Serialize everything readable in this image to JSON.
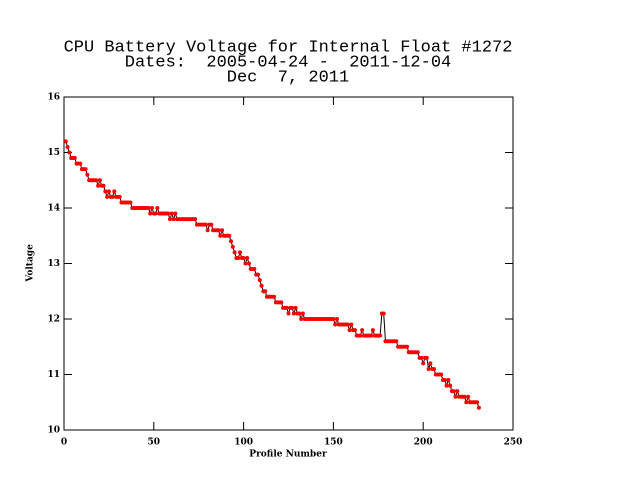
{
  "chart_data": {
    "type": "line",
    "title": [
      "CPU Battery Voltage for Internal Float #1272",
      "Dates:  2005-04-24 -  2011-12-04",
      "Dec  7, 2011"
    ],
    "x_label": "Profile Number",
    "y_label": "Voltage",
    "xlim": [
      0,
      250
    ],
    "xticks": [
      0,
      50,
      100,
      150,
      200,
      250
    ],
    "ylim": [
      10,
      16
    ],
    "yticks": [
      10,
      11,
      12,
      13,
      14,
      15,
      16
    ],
    "line_color": "#000000",
    "marker_color": "#ff0000",
    "x": [
      1,
      2,
      3,
      4,
      5,
      6,
      7,
      8,
      9,
      10,
      11,
      12,
      13,
      14,
      15,
      16,
      17,
      18,
      19,
      20,
      21,
      22,
      23,
      24,
      25,
      26,
      27,
      28,
      29,
      30,
      31,
      32,
      33,
      34,
      35,
      36,
      37,
      38,
      39,
      40,
      41,
      42,
      43,
      44,
      45,
      46,
      47,
      48,
      49,
      50,
      51,
      52,
      53,
      54,
      55,
      56,
      57,
      58,
      59,
      60,
      61,
      62,
      63,
      64,
      65,
      66,
      67,
      68,
      69,
      70,
      71,
      72,
      73,
      74,
      75,
      76,
      77,
      78,
      79,
      80,
      81,
      82,
      83,
      84,
      85,
      86,
      87,
      88,
      89,
      90,
      91,
      92,
      93,
      94,
      95,
      96,
      97,
      98,
      99,
      100,
      101,
      102,
      103,
      104,
      105,
      106,
      107,
      108,
      109,
      110,
      111,
      112,
      113,
      114,
      115,
      116,
      117,
      118,
      119,
      120,
      121,
      122,
      123,
      124,
      125,
      126,
      127,
      128,
      129,
      130,
      131,
      132,
      133,
      134,
      135,
      136,
      137,
      138,
      139,
      140,
      141,
      142,
      143,
      144,
      145,
      146,
      147,
      148,
      149,
      150,
      151,
      152,
      153,
      154,
      155,
      156,
      157,
      158,
      159,
      160,
      161,
      162,
      163,
      164,
      165,
      166,
      167,
      168,
      169,
      170,
      171,
      172,
      173,
      174,
      175,
      176,
      177,
      178,
      179,
      180,
      181,
      182,
      183,
      184,
      185,
      186,
      187,
      188,
      189,
      190,
      191,
      192,
      193,
      194,
      195,
      196,
      197,
      198,
      199,
      200,
      201,
      202,
      203,
      204,
      205,
      206,
      207,
      208,
      209,
      210,
      211,
      212,
      213,
      214,
      215,
      216,
      217,
      218,
      219,
      220,
      221,
      222,
      223,
      224,
      225,
      226,
      227,
      228,
      229,
      230,
      231
    ],
    "values": [
      15.2,
      15.1,
      15.0,
      14.9,
      14.9,
      14.9,
      14.8,
      14.8,
      14.8,
      14.7,
      14.7,
      14.7,
      14.6,
      14.5,
      14.5,
      14.5,
      14.5,
      14.5,
      14.4,
      14.5,
      14.4,
      14.4,
      14.3,
      14.2,
      14.3,
      14.2,
      14.2,
      14.3,
      14.2,
      14.2,
      14.2,
      14.1,
      14.1,
      14.1,
      14.1,
      14.1,
      14.1,
      14.0,
      14.0,
      14.0,
      14.0,
      14.0,
      14.0,
      14.0,
      14.0,
      14.0,
      14.0,
      13.9,
      14.0,
      13.9,
      13.9,
      14.0,
      13.9,
      13.9,
      13.9,
      13.9,
      13.9,
      13.9,
      13.8,
      13.9,
      13.8,
      13.9,
      13.8,
      13.8,
      13.8,
      13.8,
      13.8,
      13.8,
      13.8,
      13.8,
      13.8,
      13.8,
      13.8,
      13.7,
      13.7,
      13.7,
      13.7,
      13.7,
      13.7,
      13.6,
      13.7,
      13.7,
      13.6,
      13.6,
      13.6,
      13.6,
      13.5,
      13.6,
      13.5,
      13.5,
      13.5,
      13.5,
      13.4,
      13.3,
      13.2,
      13.1,
      13.1,
      13.2,
      13.1,
      13.1,
      13.0,
      13.1,
      13.0,
      12.9,
      12.9,
      12.9,
      12.8,
      12.8,
      12.7,
      12.6,
      12.5,
      12.5,
      12.4,
      12.4,
      12.4,
      12.4,
      12.4,
      12.3,
      12.3,
      12.3,
      12.3,
      12.2,
      12.2,
      12.2,
      12.1,
      12.2,
      12.2,
      12.1,
      12.2,
      12.1,
      12.1,
      12.0,
      12.1,
      12.0,
      12.0,
      12.0,
      12.0,
      12.0,
      12.0,
      12.0,
      12.0,
      12.0,
      12.0,
      12.0,
      12.0,
      12.0,
      12.0,
      12.0,
      12.0,
      12.0,
      11.9,
      12.0,
      11.9,
      11.9,
      11.9,
      11.9,
      11.9,
      11.9,
      11.8,
      11.9,
      11.8,
      11.8,
      11.7,
      11.7,
      11.7,
      11.8,
      11.7,
      11.7,
      11.7,
      11.7,
      11.7,
      11.8,
      11.7,
      11.7,
      11.7,
      11.7,
      12.1,
      12.1,
      11.6,
      11.6,
      11.6,
      11.6,
      11.6,
      11.6,
      11.6,
      11.5,
      11.5,
      11.5,
      11.5,
      11.5,
      11.5,
      11.4,
      11.4,
      11.4,
      11.4,
      11.4,
      11.4,
      11.3,
      11.3,
      11.2,
      11.3,
      11.3,
      11.1,
      11.2,
      11.1,
      11.1,
      11.0,
      11.0,
      11.0,
      11.0,
      10.9,
      10.9,
      10.8,
      10.9,
      10.8,
      10.7,
      10.7,
      10.6,
      10.7,
      10.6,
      10.6,
      10.6,
      10.6,
      10.5,
      10.6,
      10.5,
      10.5,
      10.5,
      10.5,
      10.5,
      10.4
    ]
  }
}
